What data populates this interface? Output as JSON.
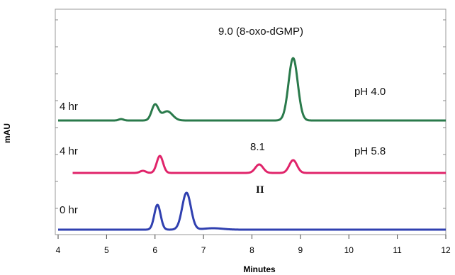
{
  "chart_data": {
    "type": "line",
    "title": "",
    "xlabel": "Minutes",
    "ylabel": "mAU",
    "xlim": [
      4,
      12
    ],
    "x_ticks": [
      "4",
      "5",
      "6",
      "7",
      "8",
      "9",
      "10",
      "11",
      "12"
    ],
    "grid": false,
    "annotations": {
      "peak_top": "9.0 (8-oxo-dGMP)",
      "peak_mid": "8.1",
      "peak_roman": "II",
      "ph_top": "pH 4.0",
      "ph_mid": "pH 5.8",
      "time_top": "4 hr",
      "time_mid": "4 hr",
      "time_bottom": "0 hr"
    },
    "series": [
      {
        "color": "#2a7a4b",
        "baseline": 0,
        "peaks": [
          {
            "x": 5.3,
            "h": 2,
            "w": 0.05
          },
          {
            "x": 6.0,
            "h": 22,
            "w": 0.07
          },
          {
            "x": 6.25,
            "h": 13,
            "w": 0.11
          },
          {
            "x": 8.85,
            "h": 88,
            "w": 0.095
          }
        ]
      },
      {
        "color": "#e0246a",
        "baseline": 0,
        "peaks": [
          {
            "x": 5.75,
            "h": 3,
            "w": 0.06
          },
          {
            "x": 6.1,
            "h": 24,
            "w": 0.065
          },
          {
            "x": 8.15,
            "h": 12,
            "w": 0.08
          },
          {
            "x": 8.85,
            "h": 18,
            "w": 0.08
          }
        ]
      },
      {
        "color": "#3040b0",
        "baseline": 0,
        "peaks": [
          {
            "x": 6.05,
            "h": 35,
            "w": 0.065
          },
          {
            "x": 6.65,
            "h": 52,
            "w": 0.09
          },
          {
            "x": 7.2,
            "h": 2,
            "w": 0.2
          }
        ]
      }
    ]
  }
}
